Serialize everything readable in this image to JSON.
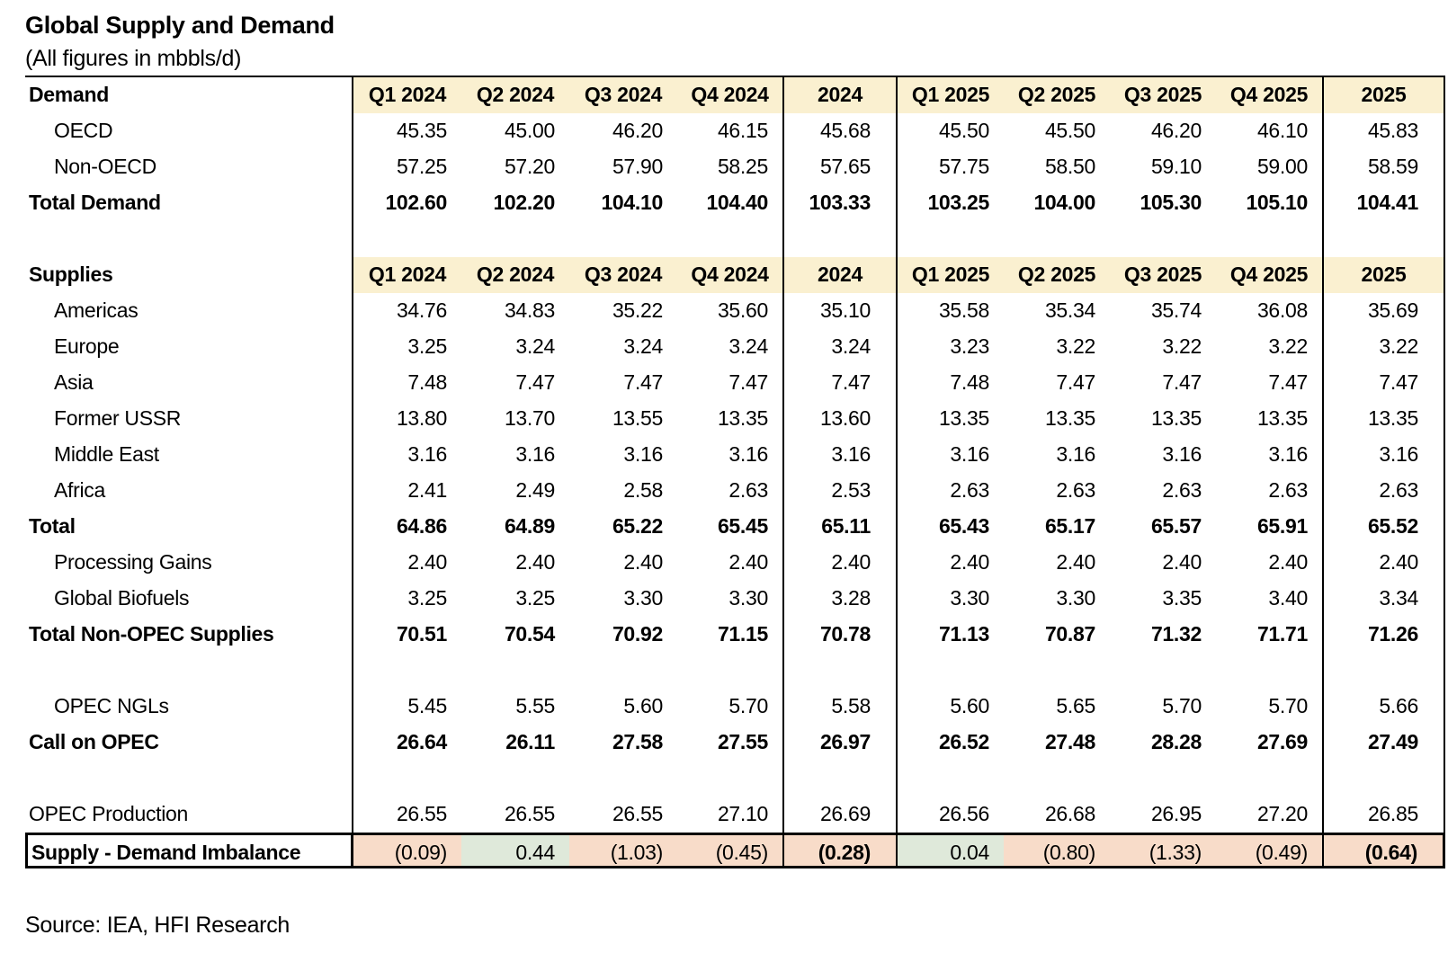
{
  "title": "Global Supply and Demand",
  "subtitle": "(All figures in mbbls/d)",
  "source": "Source: IEA, HFI Research",
  "colors": {
    "header_bg": "#FAF0D0",
    "negative_bg": "#F8DCC9",
    "positive_bg": "#DFE9DA",
    "border": "#000000"
  },
  "chart_data": {
    "type": "table",
    "title": "Global Supply and Demand",
    "units": "mbbls/d",
    "column_headers": [
      "Q1 2024",
      "Q2 2024",
      "Q3 2024",
      "Q4 2024",
      "2024",
      "Q1 2025",
      "Q2 2025",
      "Q3 2025",
      "Q4 2025",
      "2025"
    ],
    "rows": [
      {
        "type": "header",
        "label": "Demand"
      },
      {
        "type": "data",
        "label": "OECD",
        "indent": true,
        "bold": false,
        "values": [
          "45.35",
          "45.00",
          "46.20",
          "46.15",
          "45.68",
          "45.50",
          "45.50",
          "46.20",
          "46.10",
          "45.83"
        ]
      },
      {
        "type": "data",
        "label": "Non-OECD",
        "indent": true,
        "bold": false,
        "values": [
          "57.25",
          "57.20",
          "57.90",
          "58.25",
          "57.65",
          "57.75",
          "58.50",
          "59.10",
          "59.00",
          "58.59"
        ]
      },
      {
        "type": "data",
        "label": "Total Demand",
        "indent": false,
        "bold": true,
        "values": [
          "102.60",
          "102.20",
          "104.10",
          "104.40",
          "103.33",
          "103.25",
          "104.00",
          "105.30",
          "105.10",
          "104.41"
        ]
      },
      {
        "type": "blank"
      },
      {
        "type": "header",
        "label": "Supplies"
      },
      {
        "type": "data",
        "label": "Americas",
        "indent": true,
        "bold": false,
        "values": [
          "34.76",
          "34.83",
          "35.22",
          "35.60",
          "35.10",
          "35.58",
          "35.34",
          "35.74",
          "36.08",
          "35.69"
        ]
      },
      {
        "type": "data",
        "label": "Europe",
        "indent": true,
        "bold": false,
        "values": [
          "3.25",
          "3.24",
          "3.24",
          "3.24",
          "3.24",
          "3.23",
          "3.22",
          "3.22",
          "3.22",
          "3.22"
        ]
      },
      {
        "type": "data",
        "label": "Asia",
        "indent": true,
        "bold": false,
        "values": [
          "7.48",
          "7.47",
          "7.47",
          "7.47",
          "7.47",
          "7.48",
          "7.47",
          "7.47",
          "7.47",
          "7.47"
        ]
      },
      {
        "type": "data",
        "label": "Former USSR",
        "indent": true,
        "bold": false,
        "values": [
          "13.80",
          "13.70",
          "13.55",
          "13.35",
          "13.60",
          "13.35",
          "13.35",
          "13.35",
          "13.35",
          "13.35"
        ]
      },
      {
        "type": "data",
        "label": "Middle East",
        "indent": true,
        "bold": false,
        "values": [
          "3.16",
          "3.16",
          "3.16",
          "3.16",
          "3.16",
          "3.16",
          "3.16",
          "3.16",
          "3.16",
          "3.16"
        ]
      },
      {
        "type": "data",
        "label": "Africa",
        "indent": true,
        "bold": false,
        "values": [
          "2.41",
          "2.49",
          "2.58",
          "2.63",
          "2.53",
          "2.63",
          "2.63",
          "2.63",
          "2.63",
          "2.63"
        ]
      },
      {
        "type": "data",
        "label": "Total",
        "indent": false,
        "bold": true,
        "values": [
          "64.86",
          "64.89",
          "65.22",
          "65.45",
          "65.11",
          "65.43",
          "65.17",
          "65.57",
          "65.91",
          "65.52"
        ]
      },
      {
        "type": "data",
        "label": "Processing Gains",
        "indent": true,
        "bold": false,
        "values": [
          "2.40",
          "2.40",
          "2.40",
          "2.40",
          "2.40",
          "2.40",
          "2.40",
          "2.40",
          "2.40",
          "2.40"
        ]
      },
      {
        "type": "data",
        "label": "Global Biofuels",
        "indent": true,
        "bold": false,
        "values": [
          "3.25",
          "3.25",
          "3.30",
          "3.30",
          "3.28",
          "3.30",
          "3.30",
          "3.35",
          "3.40",
          "3.34"
        ]
      },
      {
        "type": "data",
        "label": "Total Non-OPEC Supplies",
        "indent": false,
        "bold": true,
        "values": [
          "70.51",
          "70.54",
          "70.92",
          "71.15",
          "70.78",
          "71.13",
          "70.87",
          "71.32",
          "71.71",
          "71.26"
        ]
      },
      {
        "type": "blank"
      },
      {
        "type": "data",
        "label": "OPEC NGLs",
        "indent": true,
        "bold": false,
        "values": [
          "5.45",
          "5.55",
          "5.60",
          "5.70",
          "5.58",
          "5.60",
          "5.65",
          "5.70",
          "5.70",
          "5.66"
        ]
      },
      {
        "type": "data",
        "label": "Call on OPEC",
        "indent": false,
        "bold": true,
        "values": [
          "26.64",
          "26.11",
          "27.58",
          "27.55",
          "26.97",
          "26.52",
          "27.48",
          "28.28",
          "27.69",
          "27.49"
        ]
      },
      {
        "type": "blank"
      },
      {
        "type": "data",
        "label": "OPEC Production",
        "indent": false,
        "bold": false,
        "values": [
          "26.55",
          "26.55",
          "26.55",
          "27.10",
          "26.69",
          "26.56",
          "26.68",
          "26.95",
          "27.20",
          "26.85"
        ]
      },
      {
        "type": "imbalance",
        "label": "Supply - Demand Imbalance",
        "indent": false,
        "bold": false,
        "bold_year_values": true,
        "values": [
          "(0.09)",
          "0.44",
          "(1.03)",
          "(0.45)",
          "(0.28)",
          "0.04",
          "(0.80)",
          "(1.33)",
          "(0.49)",
          "(0.64)"
        ]
      }
    ]
  }
}
